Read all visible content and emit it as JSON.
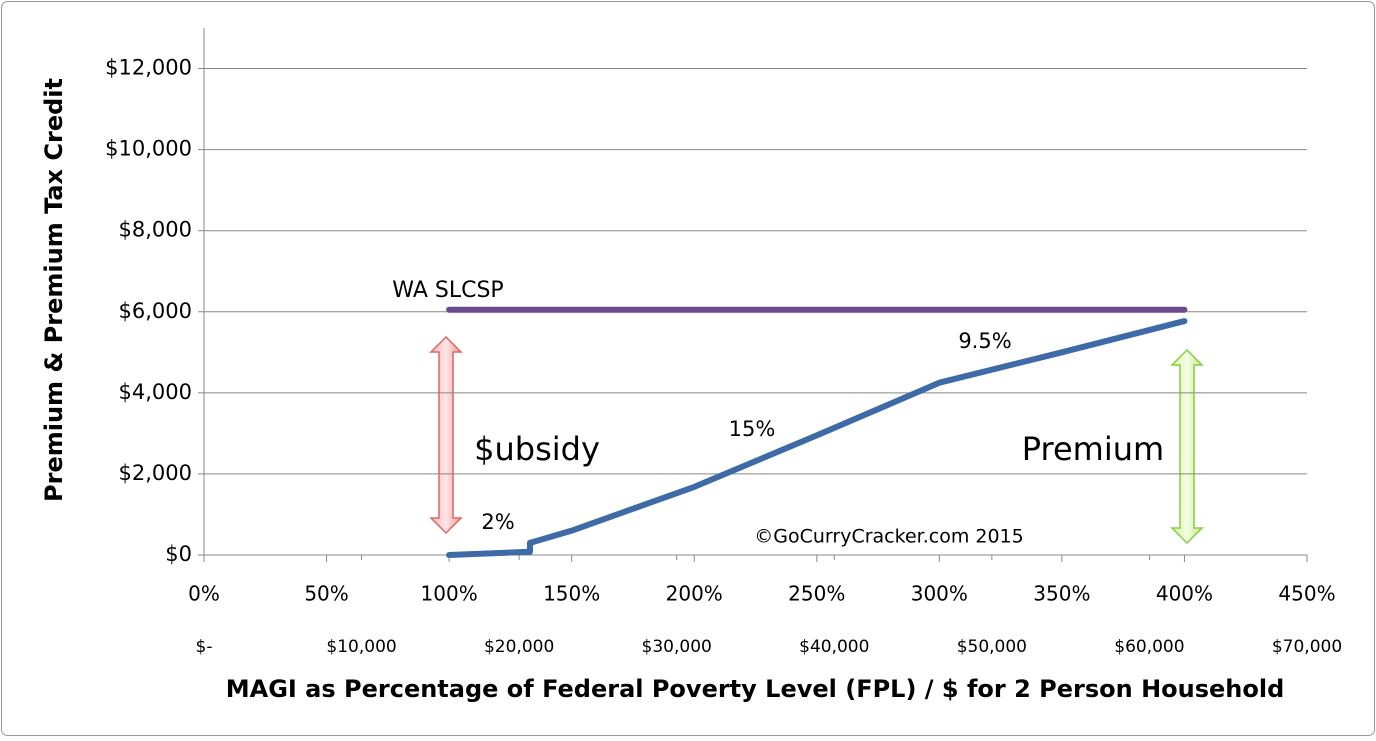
{
  "chart_data": {
    "type": "line",
    "y_label": "Premium & Premium Tax Credit",
    "x_label": "MAGI as Percentage of Federal Poverty Level (FPL) / $ for 2 Person Household",
    "xlim": [
      0,
      450
    ],
    "xticks": [
      {
        "value": 0,
        "label": "0%"
      },
      {
        "value": 50,
        "label": "50%"
      },
      {
        "value": 100,
        "label": "100%"
      },
      {
        "value": 150,
        "label": "150%"
      },
      {
        "value": 200,
        "label": "200%"
      },
      {
        "value": 250,
        "label": "250%"
      },
      {
        "value": 300,
        "label": "300%"
      },
      {
        "value": 350,
        "label": "350%"
      },
      {
        "value": 400,
        "label": "400%"
      },
      {
        "value": 450,
        "label": "450%"
      }
    ],
    "x2lim": [
      0,
      70000
    ],
    "x2ticks": [
      {
        "value": 0,
        "label": "$-"
      },
      {
        "value": 10000,
        "label": "$10,000"
      },
      {
        "value": 20000,
        "label": "$20,000"
      },
      {
        "value": 30000,
        "label": "$30,000"
      },
      {
        "value": 40000,
        "label": "$40,000"
      },
      {
        "value": 50000,
        "label": "$50,000"
      },
      {
        "value": 60000,
        "label": "$60,000"
      },
      {
        "value": 70000,
        "label": "$70,000"
      }
    ],
    "ylim": [
      0,
      13000
    ],
    "yticks": [
      {
        "value": 0,
        "label": "$0"
      },
      {
        "value": 2000,
        "label": "$2,000"
      },
      {
        "value": 4000,
        "label": "$4,000"
      },
      {
        "value": 6000,
        "label": "$6,000"
      },
      {
        "value": 8000,
        "label": "$8,000"
      },
      {
        "value": 10000,
        "label": "$10,000"
      },
      {
        "value": 12000,
        "label": "$12,000"
      }
    ],
    "grid": true,
    "series": [
      {
        "color": "#6a4c8c",
        "x": [
          100,
          400
        ],
        "values": [
          6050,
          6050
        ]
      },
      {
        "color": "#3e6aa8",
        "x": [
          100,
          133,
          133,
          150,
          200,
          250,
          300,
          350,
          400
        ],
        "values": [
          0,
          80,
          300,
          600,
          1680,
          2950,
          4250,
          5000,
          5770
        ]
      }
    ],
    "annotations": [
      "WA SLCSP",
      "$ubsidy",
      "2%",
      "15%",
      "9.5%",
      "Premium",
      "©GoCurryCracker.com 2015"
    ]
  }
}
